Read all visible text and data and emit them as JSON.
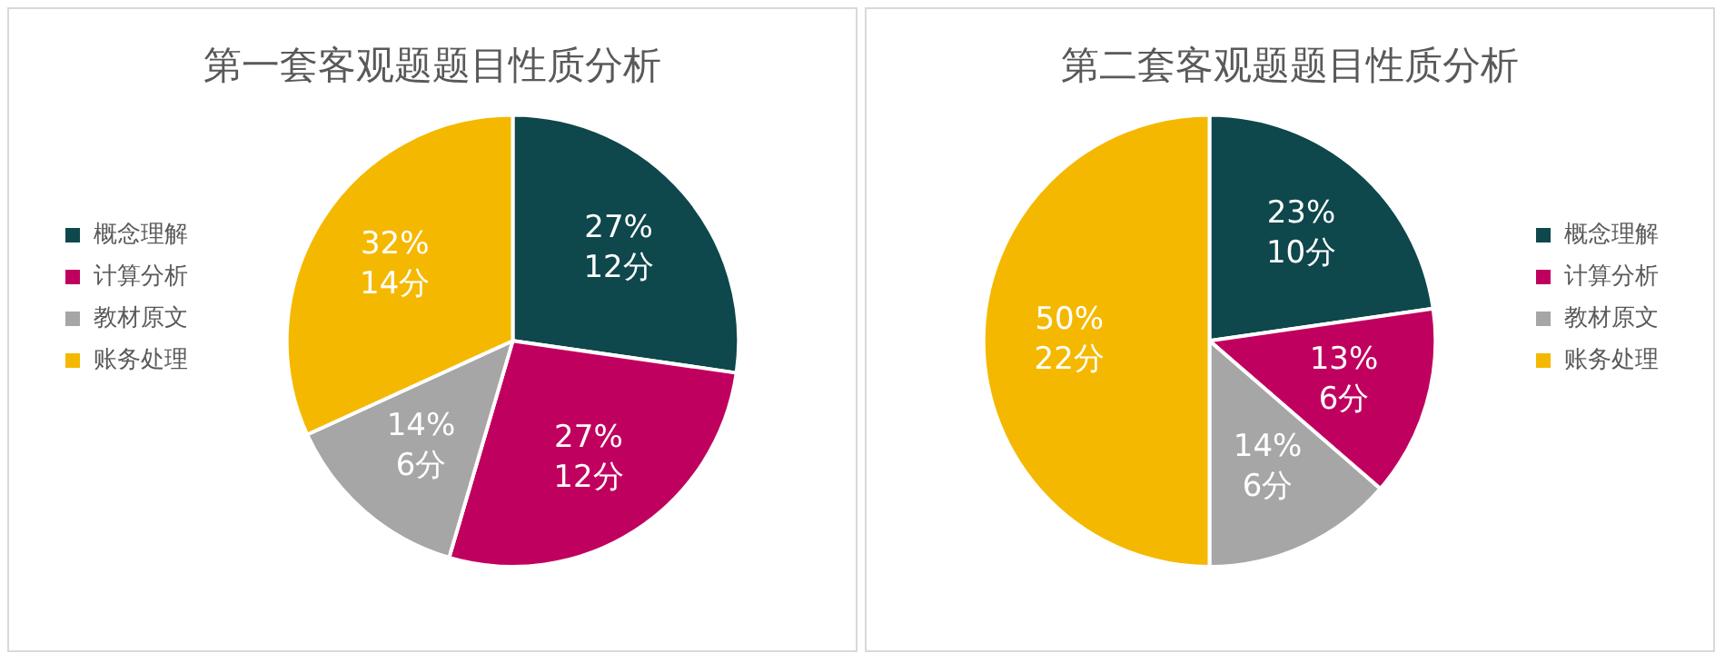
{
  "chart_data": [
    {
      "type": "pie",
      "title": "第一套客观题题目性质分析",
      "categories": [
        "概念理解",
        "计算分析",
        "教材原文",
        "账务处理"
      ],
      "values": [
        12,
        12,
        6,
        14
      ],
      "colors": [
        "#0e474c",
        "#c0005e",
        "#a6a6a6",
        "#f5b800"
      ],
      "value_labels": [
        "27%\n12分",
        "27%\n12分",
        "14%\n6分",
        "32%\n14分"
      ],
      "legend": "left"
    },
    {
      "type": "pie",
      "title": "第二套客观题题目性质分析",
      "categories": [
        "概念理解",
        "计算分析",
        "教材原文",
        "账务处理"
      ],
      "values": [
        10,
        6,
        6,
        22
      ],
      "colors": [
        "#0e474c",
        "#c0005e",
        "#a6a6a6",
        "#f5b800"
      ],
      "value_labels": [
        "23%\n10分",
        "13%\n6分",
        "14%\n6分",
        "50%\n22分"
      ],
      "legend": "right"
    }
  ]
}
